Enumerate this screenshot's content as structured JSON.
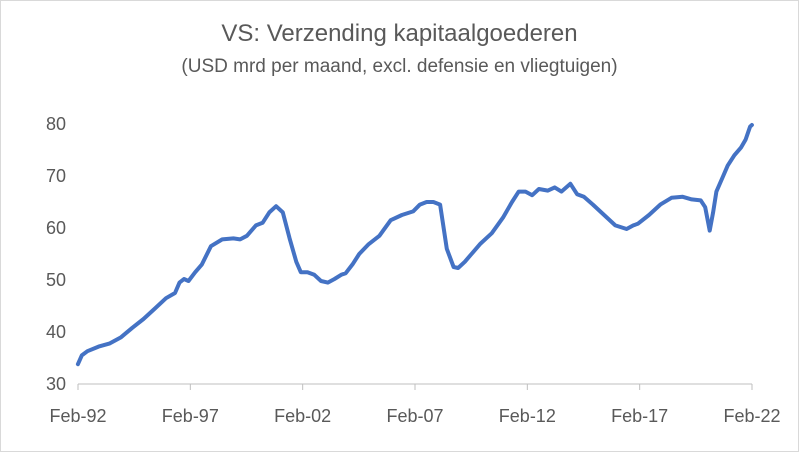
{
  "chart_data": {
    "type": "line",
    "title": "VS: Verzending kapitaalgoederen",
    "subtitle": "(USD mrd per maand, excl. defensie en vliegtuigen)",
    "ylim": [
      30,
      80
    ],
    "yticks": [
      30,
      40,
      50,
      60,
      70,
      80
    ],
    "xlim": [
      1992.083,
      2022.083
    ],
    "xticks": [
      {
        "label": "Feb-92",
        "value": 1992.083
      },
      {
        "label": "Feb-97",
        "value": 1997.083
      },
      {
        "label": "Feb-02",
        "value": 2002.083
      },
      {
        "label": "Feb-07",
        "value": 2007.083
      },
      {
        "label": "Feb-12",
        "value": 2012.083
      },
      {
        "label": "Feb-17",
        "value": 2017.083
      },
      {
        "label": "Feb-22",
        "value": 2022.083
      }
    ],
    "grid": false,
    "legend": "none",
    "color": "#4472c4",
    "series": [
      {
        "x": [
          1992.08,
          1992.25,
          1992.5,
          1993.0,
          1993.5,
          1994.0,
          1994.5,
          1995.0,
          1995.5,
          1996.0,
          1996.4,
          1996.6,
          1996.8,
          1997.0,
          1997.3,
          1997.6,
          1998.0,
          1998.5,
          1999.0,
          1999.3,
          1999.6,
          2000.0,
          2000.3,
          2000.6,
          2000.9,
          2001.2,
          2001.5,
          2001.8,
          2002.0,
          2002.3,
          2002.6,
          2002.9,
          2003.2,
          2003.5,
          2003.8,
          2004.0,
          2004.3,
          2004.6,
          2005.0,
          2005.5,
          2006.0,
          2006.5,
          2007.0,
          2007.3,
          2007.6,
          2007.9,
          2008.2,
          2008.5,
          2008.8,
          2009.0,
          2009.3,
          2009.6,
          2010.0,
          2010.5,
          2011.0,
          2011.4,
          2011.7,
          2012.0,
          2012.3,
          2012.6,
          2013.0,
          2013.3,
          2013.6,
          2014.0,
          2014.3,
          2014.6,
          2015.0,
          2015.5,
          2016.0,
          2016.5,
          2016.8,
          2017.0,
          2017.5,
          2018.0,
          2018.5,
          2019.0,
          2019.4,
          2019.8,
          2020.0,
          2020.2,
          2020.35,
          2020.5,
          2020.8,
          2021.0,
          2021.3,
          2021.6,
          2021.8,
          2022.0,
          2022.08
        ],
        "values": [
          33.8,
          35.5,
          36.3,
          37.2,
          37.8,
          39.0,
          40.8,
          42.5,
          44.5,
          46.5,
          47.5,
          49.5,
          50.2,
          49.8,
          51.5,
          53.0,
          56.5,
          57.8,
          58.0,
          57.8,
          58.5,
          60.5,
          61.0,
          63.0,
          64.2,
          63.0,
          58.0,
          53.5,
          51.5,
          51.5,
          51.0,
          49.8,
          49.5,
          50.2,
          51.0,
          51.3,
          53.0,
          55.0,
          56.8,
          58.5,
          61.5,
          62.5,
          63.2,
          64.5,
          65.0,
          65.0,
          64.5,
          56.0,
          52.5,
          52.3,
          53.5,
          55.0,
          57.0,
          59.0,
          62.0,
          65.0,
          67.0,
          67.0,
          66.3,
          67.5,
          67.2,
          67.8,
          67.0,
          68.5,
          66.5,
          66.0,
          64.5,
          62.5,
          60.5,
          59.8,
          60.5,
          60.8,
          62.5,
          64.5,
          65.8,
          66.0,
          65.5,
          65.3,
          64.0,
          59.5,
          63.0,
          67.0,
          70.0,
          72.0,
          74.0,
          75.5,
          77.0,
          79.5,
          79.8
        ]
      }
    ]
  }
}
